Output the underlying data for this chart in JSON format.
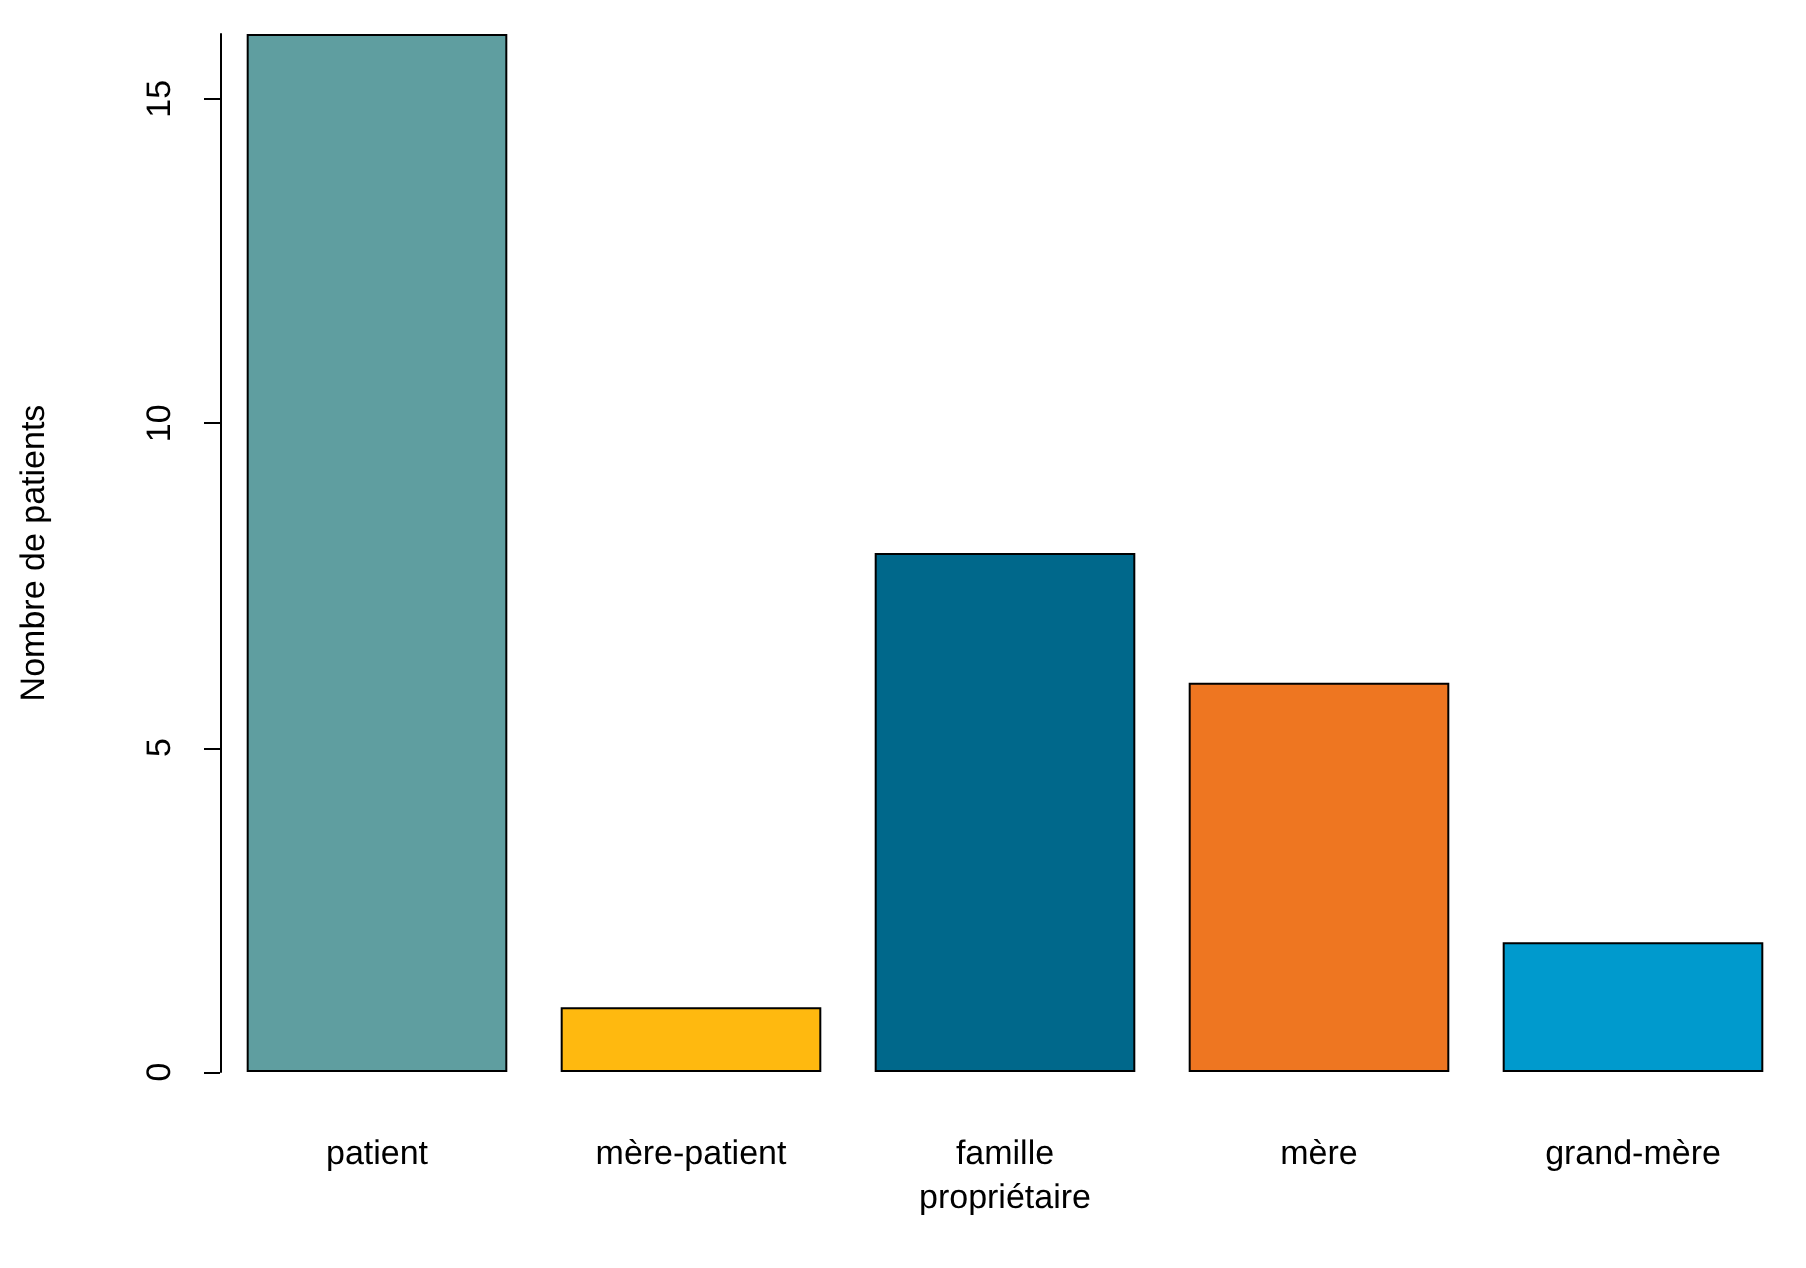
{
  "chart_data": {
    "type": "bar",
    "xlabel": "propriétaire",
    "ylabel": "Nombre de patients",
    "categories": [
      "patient",
      "mère-patient",
      "famille",
      "mère",
      "grand-mère"
    ],
    "values": [
      16,
      1,
      8,
      6,
      2
    ],
    "colors": [
      "#5f9ea0",
      "#ffb90f",
      "#00688b",
      "#ee7621",
      "#009acd"
    ],
    "ylim": [
      0,
      16
    ],
    "yticks": [
      0,
      5,
      10,
      15
    ],
    "grid": false
  }
}
